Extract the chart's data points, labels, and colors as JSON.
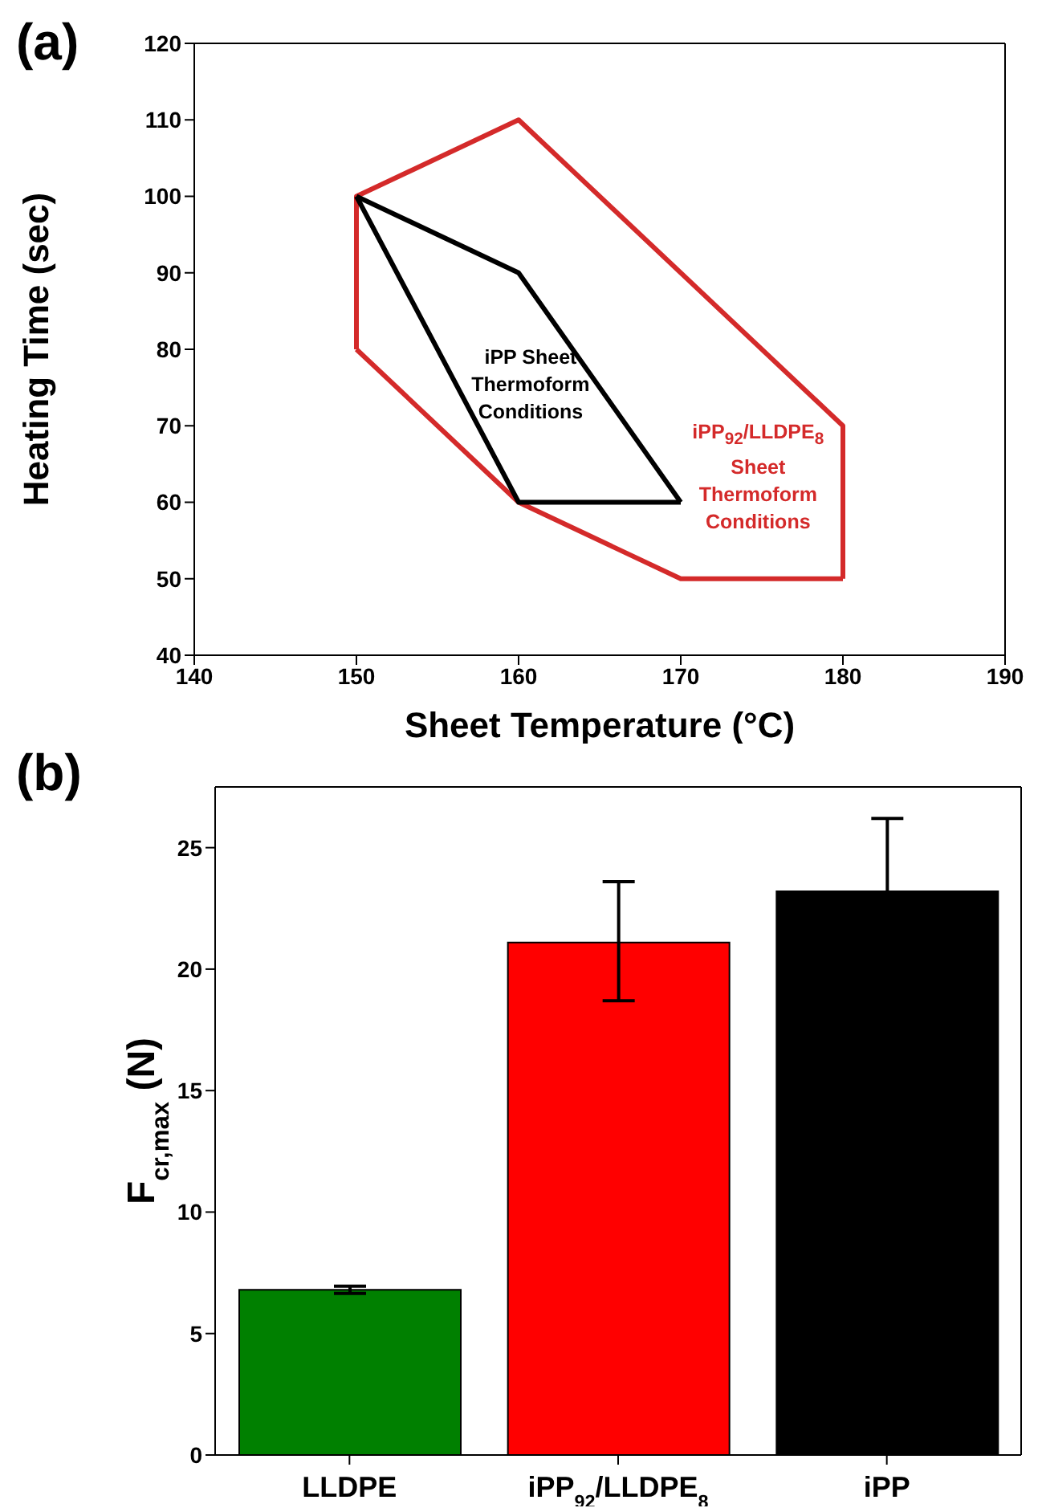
{
  "chart_data": [
    {
      "type": "line",
      "title": "(a)",
      "xlabel": "Sheet Temperature (°C)",
      "ylabel": "Heating Time (sec)",
      "xlim": [
        140,
        190
      ],
      "ylim": [
        40,
        120
      ],
      "xticks": [
        140,
        150,
        160,
        170,
        180,
        190
      ],
      "yticks": [
        40,
        50,
        60,
        70,
        80,
        90,
        100,
        110,
        120
      ],
      "line_style": "solid",
      "series": [
        {
          "name": "iPP$_{92}$/LLDPE$_{8}$ Sheet Thermoform Conditions",
          "color": "#d42a2a",
          "x": [
            150,
            150,
            160,
            180,
            180
          ],
          "values": [
            80,
            100,
            110,
            70,
            50
          ]
        },
        {
          "color": "#d42a2a",
          "x": [
            150,
            160,
            170,
            180
          ],
          "values": [
            80,
            60,
            50,
            50
          ]
        },
        {
          "name": "iPP Sheet Thermoform Conditions",
          "color": "#000000",
          "x": [
            150,
            160,
            170
          ],
          "values": [
            100,
            90,
            60
          ]
        },
        {
          "color": "#000000",
          "x": [
            150,
            160,
            170
          ],
          "values": [
            100,
            60,
            60
          ]
        }
      ]
    },
    {
      "type": "bar",
      "title": "(b)",
      "ylabel": "F$_{cr,max}$ (N)",
      "categories": [
        "LLDPE",
        "iPP$_{92}$/LLDPE$_{8}$",
        "iPP"
      ],
      "values": [
        6.8,
        21.1,
        23.2
      ],
      "colors": [
        "#008000",
        "#ff0000",
        "#000000"
      ],
      "errors": [
        0.15,
        [
          18.7,
          23.6
        ],
        3.0
      ],
      "ylim": [
        0,
        27.5
      ],
      "yticks": [
        0,
        5,
        10,
        15,
        20,
        25
      ]
    }
  ]
}
